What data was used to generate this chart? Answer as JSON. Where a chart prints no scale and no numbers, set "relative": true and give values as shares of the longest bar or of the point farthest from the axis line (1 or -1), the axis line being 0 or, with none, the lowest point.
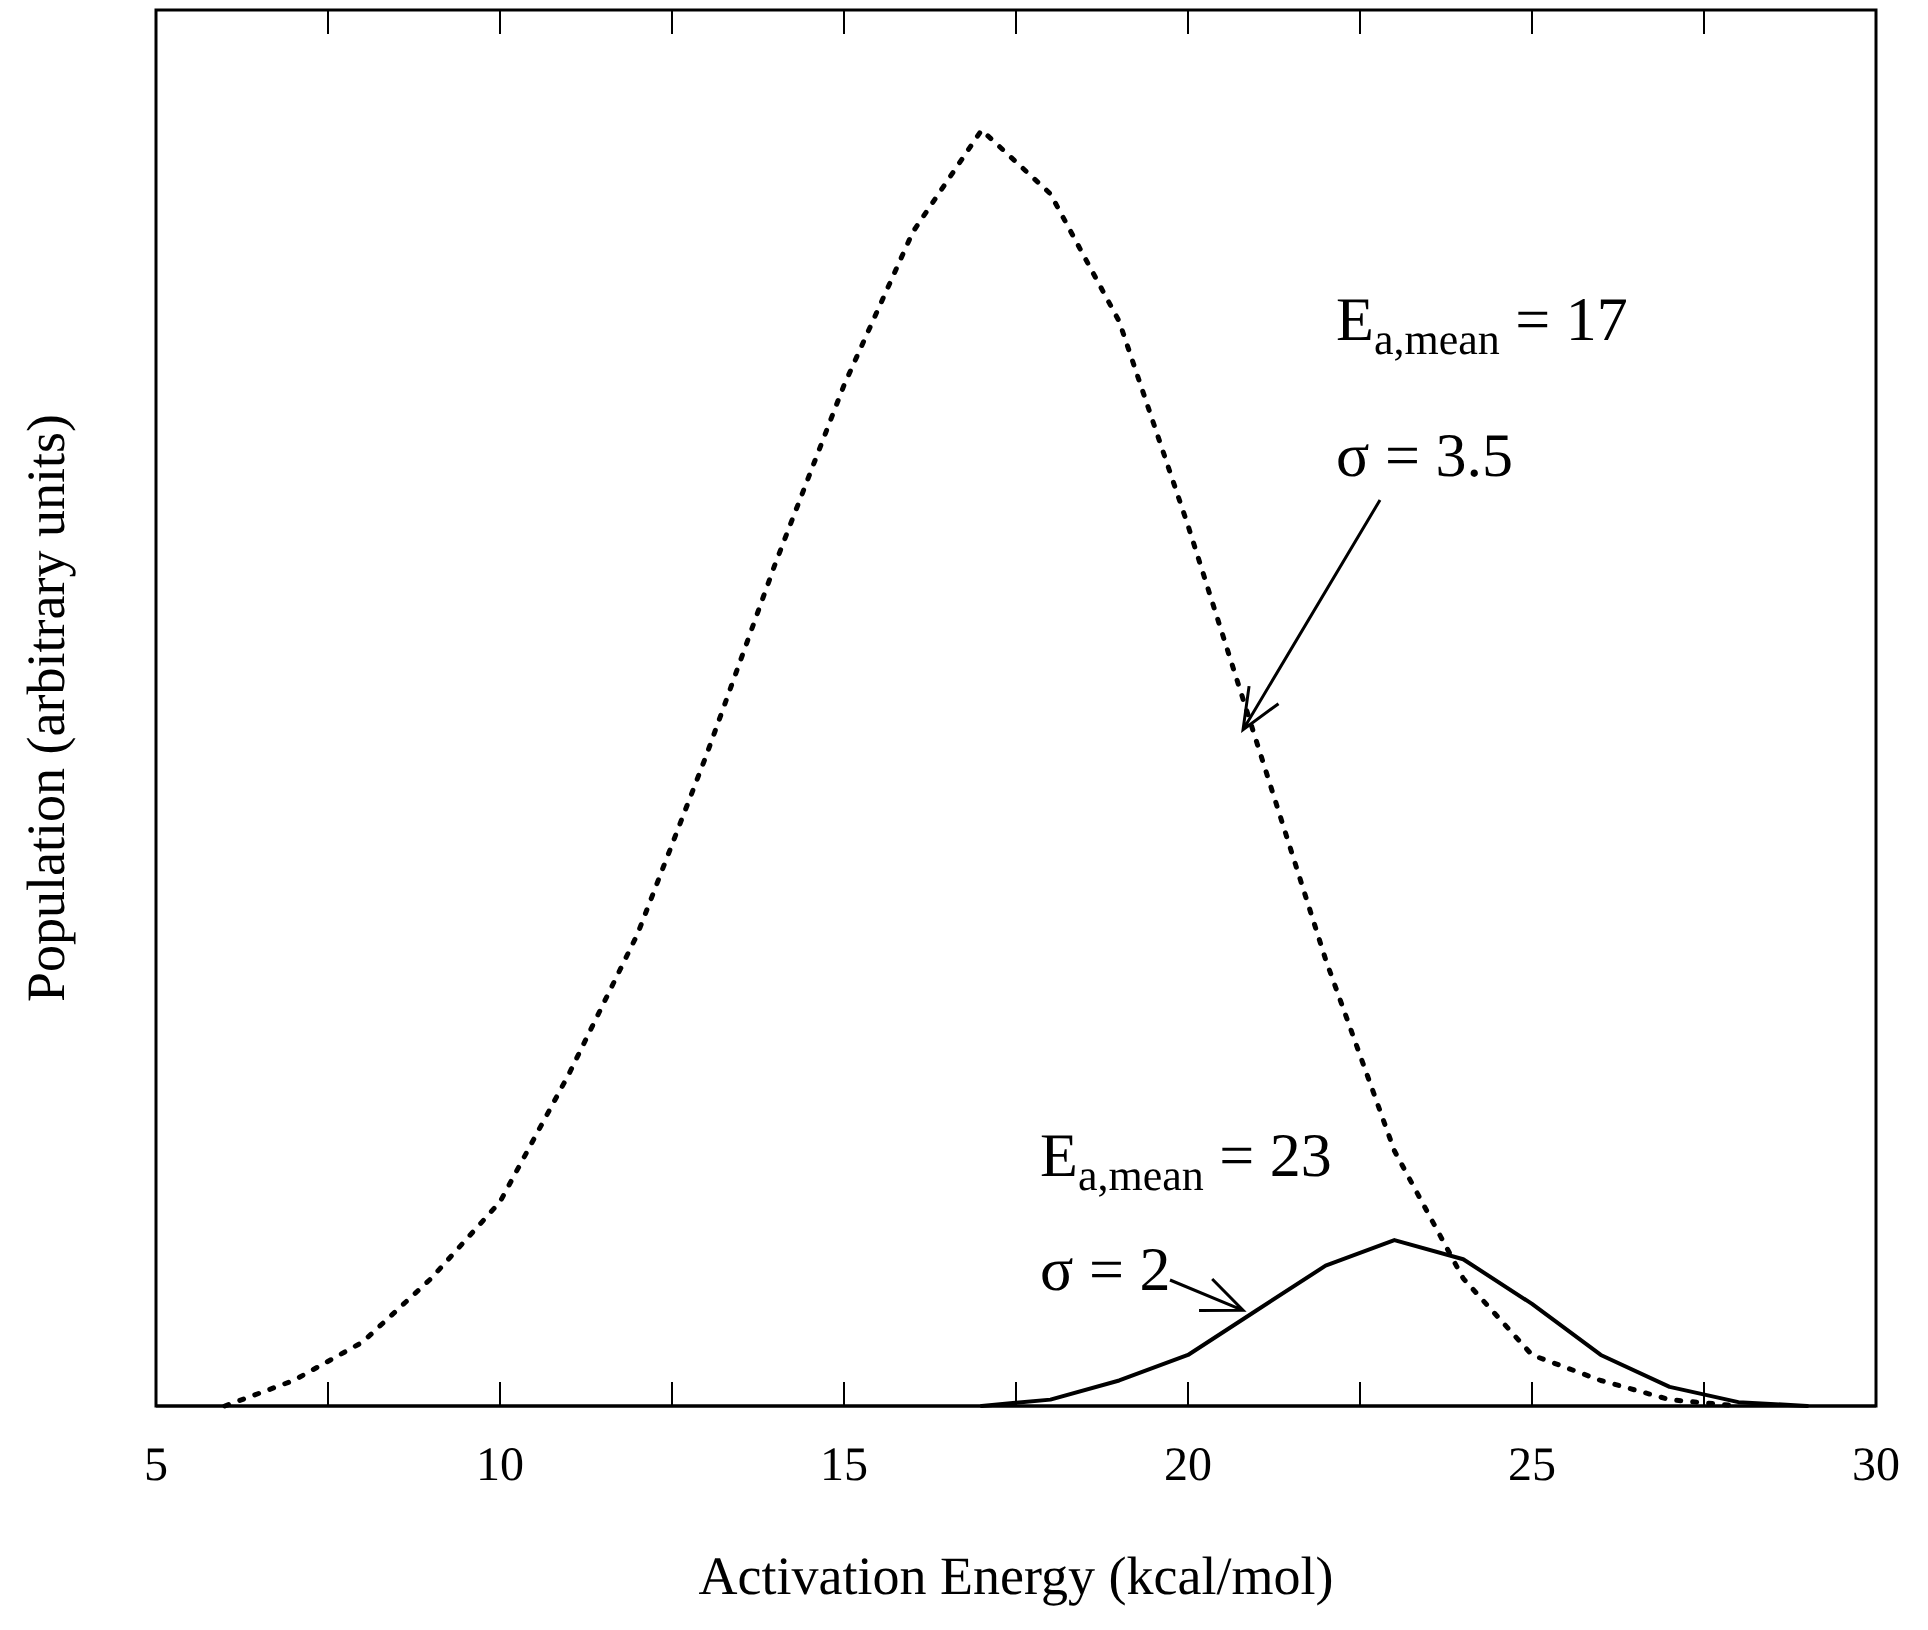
{
  "chart_data": {
    "type": "line",
    "xlabel": "Activation Energy (kcal/mol)",
    "ylabel": "Population (arbitrary units)",
    "relative": true,
    "tick_labels": "x",
    "xlim": [
      5,
      30
    ],
    "xticks": [
      5,
      {
        "value": 7.5,
        "label": null
      },
      10,
      {
        "value": 12.5,
        "label": null
      },
      15,
      {
        "value": 17.5,
        "label": null
      },
      20,
      {
        "value": 22.5,
        "label": null
      },
      25,
      {
        "value": 27.5,
        "label": null
      },
      30
    ],
    "series": [
      {
        "color": "#000000",
        "line_style": "dotted",
        "x": [
          6,
          7,
          8,
          9,
          10,
          11,
          12,
          13,
          14,
          15,
          16,
          17,
          18,
          19,
          20,
          21,
          22,
          23,
          24,
          25,
          26,
          27,
          28
        ],
        "values": [
          0,
          0.02,
          0.05,
          0.1,
          0.16,
          0.26,
          0.37,
          0.51,
          0.66,
          0.8,
          0.92,
          1,
          0.95,
          0.85,
          0.69,
          0.52,
          0.35,
          0.2,
          0.1,
          0.04,
          0.02,
          0.005,
          0
        ]
      },
      {
        "color": "#000000",
        "line_style": "solid",
        "x": [
          17,
          18,
          19,
          20,
          21,
          22,
          23,
          24,
          25,
          26,
          27,
          28,
          29
        ],
        "values": [
          0,
          0.005,
          0.02,
          0.04,
          0.075,
          0.11,
          0.13,
          0.115,
          0.08,
          0.04,
          0.015,
          0.003,
          0
        ]
      }
    ],
    "annotations": [
      "E$_{a,mean}$ = 17",
      {
        "text": "σ = 3.5",
        "x": 20.8,
        "y": 0.53
      },
      "E$_{a,mean}$ = 23",
      {
        "text": "σ = 2",
        "x": 20.8,
        "y": 0.075
      }
    ]
  }
}
